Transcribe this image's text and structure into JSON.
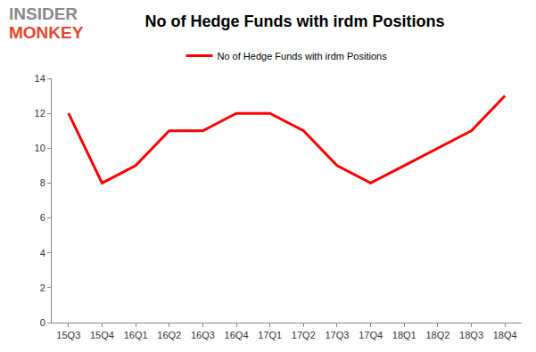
{
  "chart_data": {
    "type": "line",
    "title": "No of Hedge Funds with irdm Positions",
    "annotations": [
      "INSIDER",
      "MONKEY"
    ],
    "categories": [
      "15Q3",
      "15Q4",
      "16Q1",
      "16Q2",
      "16Q3",
      "16Q4",
      "17Q1",
      "17Q2",
      "17Q3",
      "17Q4",
      "18Q1",
      "18Q2",
      "18Q3",
      "18Q4"
    ],
    "series": [
      {
        "name": "No of Hedge Funds with irdm Positions",
        "color": "#ff0000",
        "values": [
          12,
          8,
          9,
          11,
          11,
          12,
          12,
          11,
          9,
          8,
          9,
          10,
          11,
          13
        ]
      }
    ],
    "ylim": [
      0,
      14
    ],
    "yticks": [
      0,
      2,
      4,
      6,
      8,
      10,
      12,
      14
    ],
    "grid": false,
    "legend": "top"
  }
}
